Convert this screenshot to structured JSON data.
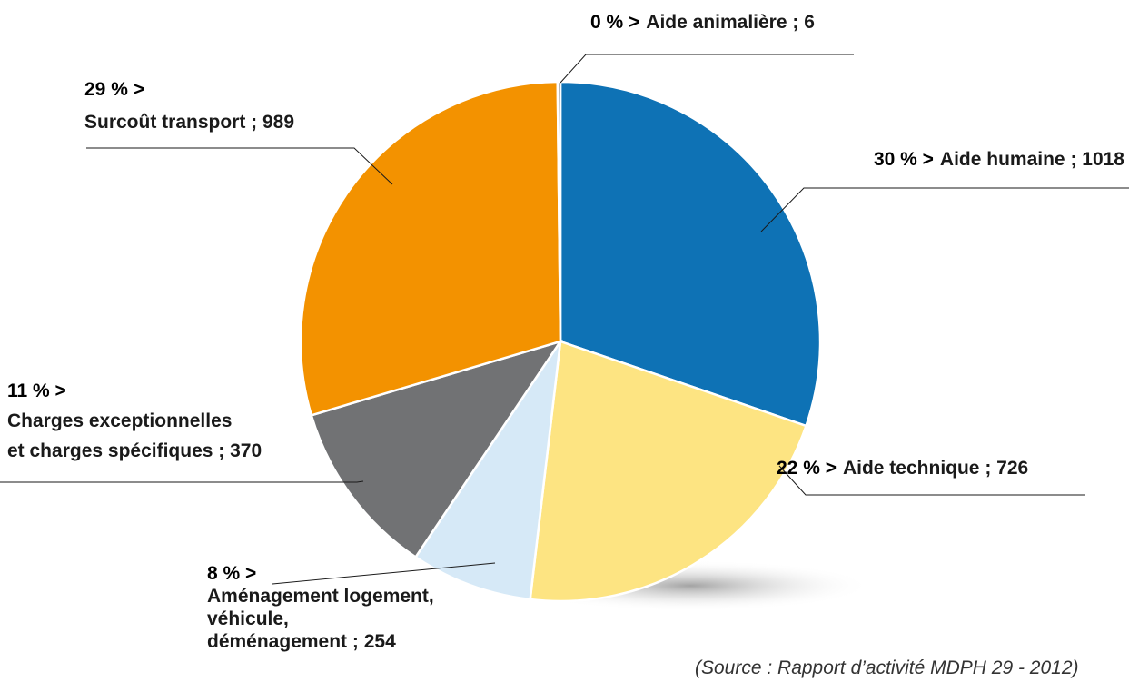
{
  "chart_data": {
    "type": "pie",
    "categories": [
      "Aide humaine",
      "Aide technique",
      "Aménagement logement",
      "Charges exceptionnelles et charges spécifiques",
      "Surcoût transport",
      "Aide animalière"
    ],
    "values": [
      1018,
      726,
      254,
      370,
      989,
      6
    ],
    "colors": [
      "#0e72b5",
      "#fde482",
      "#d6e9f7",
      "#717274",
      "#f39200",
      "#8a8a8a"
    ],
    "percents": [
      30,
      22,
      8,
      11,
      29,
      0
    ],
    "percent_labels": [
      "30 % >",
      "22 % >",
      "8 % >",
      "11 % >",
      "29 % >",
      "0 % >"
    ],
    "value_labels": [
      [
        "Aide humaine ; 1018"
      ],
      [
        "Aide technique ; 726"
      ],
      [
        "Aménagement logement,",
        "véhicule,",
        "déménagement ; 254"
      ],
      [
        "Charges exceptionnelles",
        "et charges spécifiques ; 370"
      ],
      [
        "Surcoût transport ; 989"
      ],
      [
        "Aide animalière ; 6"
      ]
    ],
    "source": "(Source : Rapport d’activité MDPH 29 - 2012)"
  }
}
